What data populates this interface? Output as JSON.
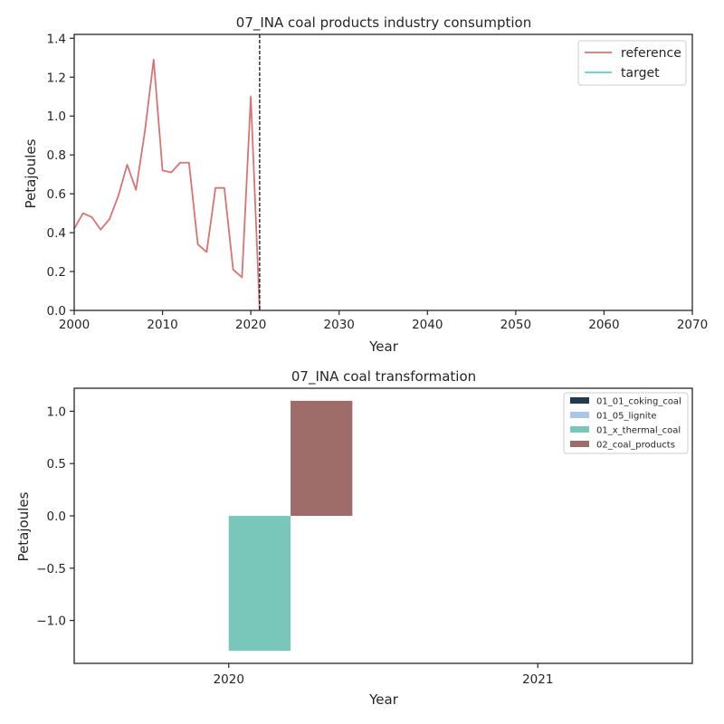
{
  "chart_data": [
    {
      "type": "line",
      "title": "07_INA coal products industry consumption",
      "xlabel": "Year",
      "ylabel": "Petajoules",
      "xlim": [
        2000,
        2070
      ],
      "ylim": [
        0,
        1.42
      ],
      "xticks": [
        "2000",
        "2010",
        "2020",
        "2030",
        "2040",
        "2050",
        "2060",
        "2070"
      ],
      "yticks": [
        "0.0",
        "0.2",
        "0.4",
        "0.6",
        "0.8",
        "1.0",
        "1.2",
        "1.4"
      ],
      "grid": false,
      "legend_position": "top-right",
      "vline_x": 2021,
      "series": [
        {
          "name": "reference",
          "color": "#d97373",
          "x": [
            2000,
            2001,
            2002,
            2003,
            2004,
            2005,
            2006,
            2007,
            2008,
            2009,
            2010,
            2011,
            2012,
            2013,
            2014,
            2015,
            2016,
            2017,
            2018,
            2019,
            2020,
            2021
          ],
          "y": [
            0.42,
            0.5,
            0.48,
            0.415,
            0.47,
            0.59,
            0.75,
            0.62,
            0.92,
            1.29,
            0.72,
            0.71,
            0.76,
            0.76,
            0.34,
            0.3,
            0.63,
            0.63,
            0.21,
            0.17,
            1.1,
            0.0
          ]
        },
        {
          "name": "target",
          "color": "#5fd0c0",
          "x": [],
          "y": []
        }
      ]
    },
    {
      "type": "bar",
      "title": "07_INA coal transformation",
      "xlabel": "Year",
      "ylabel": "Petajoules",
      "categories": [
        "2020",
        "2021"
      ],
      "ylim": [
        -1.41,
        1.22
      ],
      "yticks": [
        "1.0",
        "0.5",
        "0.0",
        "−0.5",
        "−1.0"
      ],
      "ytick_values": [
        1.0,
        0.5,
        0.0,
        -0.5,
        -1.0
      ],
      "grid": false,
      "legend_position": "top-right",
      "series": [
        {
          "name": "01_01_coking_coal",
          "color": "#1f3b4d",
          "values": [
            0,
            0
          ]
        },
        {
          "name": "01_05_lignite",
          "color": "#a9c8e8",
          "values": [
            0,
            0
          ]
        },
        {
          "name": "01_x_thermal_coal",
          "color": "#79c7bb",
          "values": [
            -1.29,
            0
          ]
        },
        {
          "name": "02_coal_products",
          "color": "#9e6d6a",
          "values": [
            1.1,
            0
          ]
        }
      ]
    }
  ]
}
